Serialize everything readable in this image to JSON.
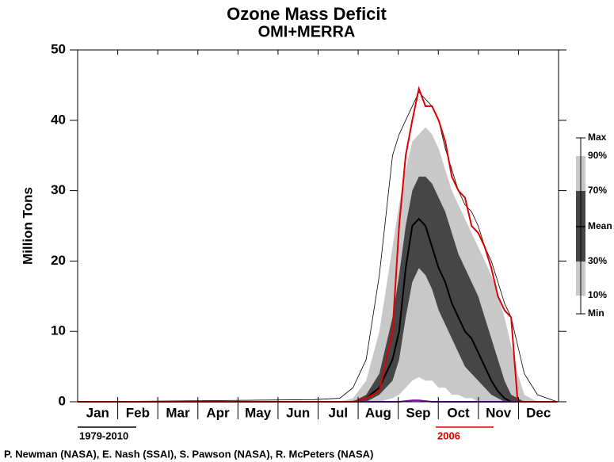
{
  "chart_data": {
    "type": "line",
    "title": "Ozone Mass Deficit",
    "subtitle": "OMI+MERRA",
    "y_label": "Million Tons",
    "categories": [
      "Jan",
      "Feb",
      "Mar",
      "Apr",
      "May",
      "Jun",
      "Jul",
      "Aug",
      "Sep",
      "Oct",
      "Nov",
      "Dec"
    ],
    "x": [
      1,
      180,
      200,
      210,
      220,
      230,
      240,
      245,
      250,
      255,
      260,
      265,
      270,
      275,
      280,
      285,
      290,
      295,
      300,
      305,
      310,
      315,
      320,
      325,
      330,
      335,
      340,
      350,
      365
    ],
    "xlim": [
      1,
      366
    ],
    "ylim": [
      0,
      50
    ],
    "yticks": [
      0,
      10,
      20,
      30,
      40,
      50
    ],
    "series": [
      {
        "name": "Max",
        "color": "#000000",
        "style": "line",
        "values": [
          0,
          0.3,
          0.5,
          2,
          6,
          18,
          35,
          38,
          40,
          42,
          44,
          43,
          42,
          40,
          36,
          33,
          30,
          28,
          27,
          25,
          22,
          20,
          17,
          14,
          12,
          8,
          4,
          1,
          0
        ]
      },
      {
        "name": "90%",
        "color": "#c8c8c8",
        "style": "area",
        "values": [
          0,
          0,
          0,
          0.5,
          3,
          10,
          22,
          28,
          33,
          37,
          38,
          39,
          38,
          36,
          33,
          30,
          28,
          26,
          24,
          22,
          20,
          18,
          15,
          12,
          8,
          4,
          1,
          0,
          0
        ]
      },
      {
        "name": "70%",
        "color": "#464646",
        "style": "area",
        "values": [
          0,
          0,
          0,
          0,
          1,
          4,
          12,
          18,
          25,
          30,
          32,
          32,
          31,
          29,
          27,
          24,
          21,
          19,
          17,
          15,
          12,
          9,
          6,
          3,
          1,
          0.5,
          0,
          0,
          0
        ]
      },
      {
        "name": "Mean",
        "color": "#000000",
        "style": "line",
        "values": [
          0,
          0,
          0,
          0,
          0.5,
          2,
          6,
          10,
          19,
          25,
          26,
          25,
          22,
          19,
          17,
          14,
          12,
          10,
          9,
          7,
          5,
          3,
          1.5,
          0.5,
          0,
          0,
          0,
          0,
          0
        ]
      },
      {
        "name": "30%",
        "color": "#c8c8c8",
        "style": "area",
        "values": [
          0,
          0,
          0,
          0,
          0,
          1,
          3,
          6,
          12,
          17,
          19,
          18,
          16,
          13,
          11,
          9,
          7,
          5,
          4,
          3,
          2,
          1,
          0.5,
          0,
          0,
          0,
          0,
          0,
          0
        ]
      },
      {
        "name": "10%",
        "color": "#ffffff",
        "style": "area",
        "values": [
          0,
          0,
          0,
          0,
          0,
          0,
          0.5,
          1,
          2,
          3,
          3.5,
          3,
          3,
          2,
          2,
          1,
          1,
          0.5,
          0.5,
          0,
          0,
          0,
          0,
          0,
          0,
          0,
          0,
          0,
          0
        ]
      },
      {
        "name": "Min",
        "color": "#8000c0",
        "style": "line",
        "values": [
          0,
          0,
          0,
          0,
          0,
          0,
          0,
          0,
          0.1,
          0.2,
          0.2,
          0.1,
          0,
          0,
          0,
          0,
          0,
          0,
          0,
          0,
          0,
          0,
          0,
          0,
          0,
          0,
          0,
          0,
          0
        ]
      },
      {
        "name": "2006",
        "color": "#e00000",
        "style": "line",
        "values": [
          0,
          0,
          0,
          0,
          0.5,
          1.5,
          10,
          25,
          35,
          40,
          44.5,
          42,
          42,
          40,
          37,
          32,
          30,
          29,
          25,
          24,
          22,
          19,
          15,
          13,
          12,
          0,
          0,
          0,
          0
        ]
      }
    ],
    "climatology_label": "1979-2010",
    "credit": "P. Newman (NASA), E. Nash (SSAI), S. Pawson (NASA), R. McPeters (NASA)"
  }
}
